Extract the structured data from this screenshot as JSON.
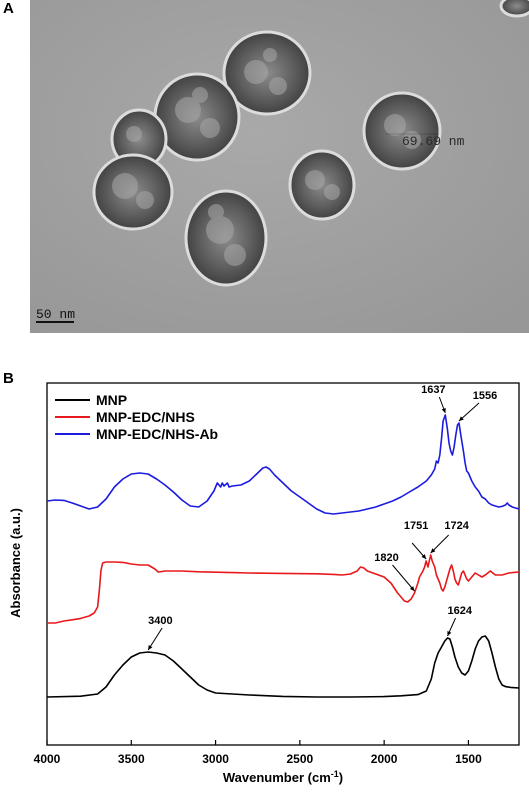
{
  "panel_a": {
    "label": "A",
    "scale_bar_text": "50 nm",
    "measure_text": "69.69 nm"
  },
  "panel_b": {
    "label": "B"
  },
  "chart_data": {
    "type": "line",
    "title": "",
    "xlabel": "Wavenumber (cm",
    "xlabel_sup": "-1",
    "xlabel_close": ")",
    "ylabel": "Absorbance (a.u.)",
    "xlim": [
      4000,
      1200
    ],
    "x_reversed": true,
    "xticks": [
      4000,
      3500,
      3000,
      2500,
      2000,
      1500
    ],
    "y_ticks_shown": false,
    "y_unit_range": [
      0,
      100
    ],
    "legend_position": "top-left",
    "series": [
      {
        "name": "MNP",
        "color": "#000000",
        "points": [
          [
            4000,
            5
          ],
          [
            3800,
            5.4
          ],
          [
            3700,
            6.5
          ],
          [
            3650,
            10
          ],
          [
            3600,
            16
          ],
          [
            3550,
            21
          ],
          [
            3500,
            25
          ],
          [
            3450,
            27
          ],
          [
            3400,
            27.5
          ],
          [
            3350,
            27
          ],
          [
            3300,
            26
          ],
          [
            3250,
            23
          ],
          [
            3200,
            19
          ],
          [
            3150,
            15
          ],
          [
            3100,
            11
          ],
          [
            3050,
            8.5
          ],
          [
            3000,
            7
          ],
          [
            2800,
            6
          ],
          [
            2600,
            5.3
          ],
          [
            2400,
            5
          ],
          [
            2200,
            5
          ],
          [
            2000,
            5.2
          ],
          [
            1900,
            5.6
          ],
          [
            1800,
            6.2
          ],
          [
            1750,
            8
          ],
          [
            1720,
            14
          ],
          [
            1700,
            22
          ],
          [
            1680,
            27
          ],
          [
            1660,
            30
          ],
          [
            1640,
            33
          ],
          [
            1624,
            34.5
          ],
          [
            1610,
            34
          ],
          [
            1595,
            30
          ],
          [
            1580,
            25
          ],
          [
            1560,
            20
          ],
          [
            1540,
            17
          ],
          [
            1520,
            16
          ],
          [
            1500,
            18
          ],
          [
            1480,
            23
          ],
          [
            1460,
            29
          ],
          [
            1440,
            33
          ],
          [
            1420,
            35
          ],
          [
            1400,
            35.5
          ],
          [
            1380,
            33
          ],
          [
            1360,
            27
          ],
          [
            1340,
            20
          ],
          [
            1320,
            14
          ],
          [
            1300,
            11
          ],
          [
            1280,
            10.2
          ],
          [
            1250,
            9.8
          ],
          [
            1200,
            9.5
          ]
        ]
      },
      {
        "name": "MNP-EDC/NHS",
        "color": "#e8191c",
        "points": [
          [
            4000,
            42
          ],
          [
            3950,
            42
          ],
          [
            3900,
            43
          ],
          [
            3850,
            43.6
          ],
          [
            3800,
            44.3
          ],
          [
            3750,
            45.5
          ],
          [
            3720,
            47
          ],
          [
            3700,
            50
          ],
          [
            3690,
            58
          ],
          [
            3680,
            68
          ],
          [
            3670,
            72
          ],
          [
            3650,
            72.5
          ],
          [
            3600,
            72.5
          ],
          [
            3550,
            72.3
          ],
          [
            3500,
            71.5
          ],
          [
            3450,
            71
          ],
          [
            3400,
            71
          ],
          [
            3360,
            69
          ],
          [
            3340,
            67.5
          ],
          [
            3320,
            67.7
          ],
          [
            3300,
            68
          ],
          [
            3200,
            68
          ],
          [
            3100,
            67.6
          ],
          [
            3000,
            67.4
          ],
          [
            2900,
            67.2
          ],
          [
            2800,
            67
          ],
          [
            2600,
            66.8
          ],
          [
            2400,
            66.6
          ],
          [
            2300,
            66.3
          ],
          [
            2250,
            66
          ],
          [
            2200,
            66.5
          ],
          [
            2160,
            68
          ],
          [
            2140,
            70
          ],
          [
            2120,
            69.5
          ],
          [
            2100,
            68
          ],
          [
            2050,
            66.5
          ],
          [
            2000,
            65
          ],
          [
            1960,
            62
          ],
          [
            1920,
            57
          ],
          [
            1880,
            53
          ],
          [
            1860,
            52.5
          ],
          [
            1840,
            54
          ],
          [
            1820,
            57
          ],
          [
            1800,
            62
          ],
          [
            1790,
            65
          ],
          [
            1770,
            68
          ],
          [
            1760,
            70
          ],
          [
            1751,
            73
          ],
          [
            1740,
            70
          ],
          [
            1735,
            72
          ],
          [
            1724,
            76
          ],
          [
            1715,
            73
          ],
          [
            1700,
            70
          ],
          [
            1690,
            66
          ],
          [
            1680,
            64
          ],
          [
            1670,
            62
          ],
          [
            1660,
            59
          ],
          [
            1650,
            58
          ],
          [
            1640,
            60
          ],
          [
            1630,
            63
          ],
          [
            1620,
            66
          ],
          [
            1610,
            69
          ],
          [
            1600,
            71
          ],
          [
            1590,
            68
          ],
          [
            1580,
            64
          ],
          [
            1570,
            62
          ],
          [
            1560,
            61
          ],
          [
            1550,
            64
          ],
          [
            1540,
            67
          ],
          [
            1530,
            68
          ],
          [
            1520,
            66
          ],
          [
            1510,
            64
          ],
          [
            1500,
            63
          ],
          [
            1480,
            65
          ],
          [
            1460,
            67
          ],
          [
            1440,
            66
          ],
          [
            1420,
            65
          ],
          [
            1400,
            66
          ],
          [
            1370,
            68
          ],
          [
            1340,
            66
          ],
          [
            1300,
            66
          ],
          [
            1260,
            67
          ],
          [
            1230,
            67.3
          ],
          [
            1200,
            67.5
          ]
        ]
      },
      {
        "name": "MNP-EDC/NHS-Ab",
        "color": "#1c1ce0",
        "points": [
          [
            4000,
            103
          ],
          [
            3950,
            103.5
          ],
          [
            3900,
            103.3
          ],
          [
            3850,
            102
          ],
          [
            3800,
            100.5
          ],
          [
            3750,
            99
          ],
          [
            3700,
            100
          ],
          [
            3650,
            104
          ],
          [
            3600,
            110
          ],
          [
            3550,
            114
          ],
          [
            3500,
            116.5
          ],
          [
            3450,
            117
          ],
          [
            3400,
            116.5
          ],
          [
            3350,
            114
          ],
          [
            3300,
            111
          ],
          [
            3250,
            107.5
          ],
          [
            3200,
            103.5
          ],
          [
            3150,
            100.5
          ],
          [
            3100,
            100
          ],
          [
            3050,
            103
          ],
          [
            3010,
            108
          ],
          [
            3000,
            110
          ],
          [
            2990,
            112
          ],
          [
            2970,
            110
          ],
          [
            2960,
            112
          ],
          [
            2950,
            110.5
          ],
          [
            2930,
            112
          ],
          [
            2920,
            110
          ],
          [
            2900,
            110.5
          ],
          [
            2850,
            111
          ],
          [
            2800,
            113
          ],
          [
            2750,
            117
          ],
          [
            2720,
            119.5
          ],
          [
            2700,
            120
          ],
          [
            2680,
            119
          ],
          [
            2650,
            116
          ],
          [
            2600,
            112
          ],
          [
            2550,
            108
          ],
          [
            2500,
            105
          ],
          [
            2450,
            102
          ],
          [
            2400,
            99
          ],
          [
            2350,
            97
          ],
          [
            2300,
            96.5
          ],
          [
            2250,
            97
          ],
          [
            2200,
            97.5
          ],
          [
            2150,
            98
          ],
          [
            2100,
            99
          ],
          [
            2050,
            100
          ],
          [
            2000,
            101.5
          ],
          [
            1950,
            103
          ],
          [
            1900,
            105
          ],
          [
            1850,
            107.5
          ],
          [
            1800,
            110
          ],
          [
            1750,
            113
          ],
          [
            1720,
            116
          ],
          [
            1700,
            119
          ],
          [
            1690,
            123
          ],
          [
            1680,
            122
          ],
          [
            1670,
            126
          ],
          [
            1660,
            134
          ],
          [
            1650,
            143
          ],
          [
            1637,
            146
          ],
          [
            1625,
            139
          ],
          [
            1615,
            132
          ],
          [
            1605,
            128
          ],
          [
            1595,
            126
          ],
          [
            1585,
            130
          ],
          [
            1575,
            136
          ],
          [
            1565,
            141
          ],
          [
            1556,
            142
          ],
          [
            1545,
            136
          ],
          [
            1530,
            128
          ],
          [
            1520,
            122
          ],
          [
            1510,
            118
          ],
          [
            1500,
            117
          ],
          [
            1480,
            113
          ],
          [
            1460,
            110
          ],
          [
            1440,
            108
          ],
          [
            1420,
            105
          ],
          [
            1400,
            104
          ],
          [
            1380,
            102
          ],
          [
            1360,
            101
          ],
          [
            1340,
            100.5
          ],
          [
            1320,
            100
          ],
          [
            1300,
            100.3
          ],
          [
            1280,
            101
          ],
          [
            1270,
            102
          ],
          [
            1260,
            101
          ],
          [
            1240,
            100
          ],
          [
            1220,
            99.5
          ],
          [
            1200,
            99
          ]
        ]
      }
    ],
    "annotations": [
      {
        "text": "3400",
        "x": 3400,
        "y": 27.5,
        "series": "MNP"
      },
      {
        "text": "1624",
        "x": 1624,
        "y": 34.5,
        "series": "MNP"
      },
      {
        "text": "1820",
        "x": 1820,
        "y": 57,
        "series": "MNP-EDC/NHS"
      },
      {
        "text": "1751",
        "x": 1751,
        "y": 73,
        "series": "MNP-EDC/NHS"
      },
      {
        "text": "1724",
        "x": 1724,
        "y": 76,
        "series": "MNP-EDC/NHS"
      },
      {
        "text": "1637",
        "x": 1637,
        "y": 146,
        "series": "MNP-EDC/NHS-Ab"
      },
      {
        "text": "1556",
        "x": 1556,
        "y": 142,
        "series": "MNP-EDC/NHS-Ab"
      }
    ]
  }
}
